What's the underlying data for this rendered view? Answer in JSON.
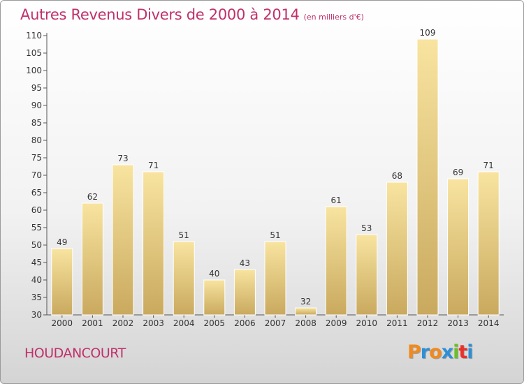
{
  "title": "Autres Revenus Divers de 2000 à 2014",
  "subtitle": "(en milliers d'€)",
  "town": "HOUDANCOURT",
  "brand": "Proxiti",
  "colors": {
    "title": "#c0306a",
    "bar_light": "#f8e4a0",
    "bar_dark": "#c9a95e",
    "logo": [
      "#f08a1e",
      "#2d8fd6",
      "#f08a1e",
      "#2d8fd6",
      "#6abf2a",
      "#e8312a",
      "#2d8fd6"
    ]
  },
  "chart_data": {
    "type": "bar",
    "categories": [
      "2000",
      "2001",
      "2002",
      "2003",
      "2004",
      "2005",
      "2006",
      "2007",
      "2008",
      "2009",
      "2010",
      "2011",
      "2012",
      "2013",
      "2014"
    ],
    "values": [
      49,
      62,
      73,
      71,
      51,
      40,
      43,
      51,
      32,
      61,
      53,
      68,
      109,
      69,
      71
    ],
    "ylim": [
      30,
      110
    ],
    "yticks": [
      30,
      35,
      40,
      45,
      50,
      55,
      60,
      65,
      70,
      75,
      80,
      85,
      90,
      95,
      100,
      105,
      110
    ],
    "grid": false,
    "xlabel": "",
    "ylabel": ""
  }
}
